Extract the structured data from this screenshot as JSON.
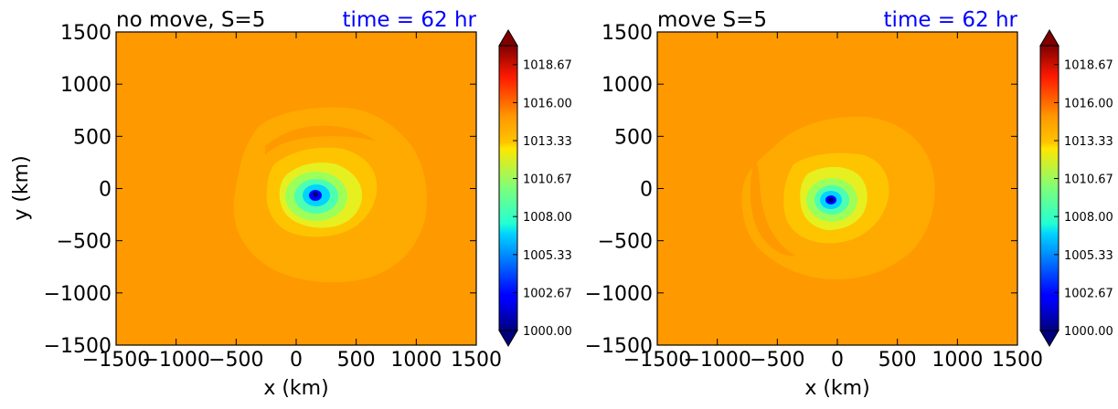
{
  "chart_data": [
    {
      "type": "contourf",
      "title_left": "no move, S=5",
      "title_right": "time = 62 hr",
      "title_right_color": "#0000ff",
      "xlabel": "x (km)",
      "ylabel": "y (km)",
      "xlim": [
        -1500,
        1500
      ],
      "ylim": [
        -1500,
        1500
      ],
      "xticks": [
        "−1500",
        "−1000",
        "−500",
        "0",
        "500",
        "1000",
        "1500"
      ],
      "yticks": [
        "−1500",
        "−1000",
        "−500",
        "0",
        "500",
        "1000",
        "1500"
      ],
      "storm_center_km": [
        160,
        -70
      ],
      "background_color": "#ff9900",
      "colorbar": {
        "min": 1000.0,
        "max": 1020.0,
        "extend": "both",
        "labels": [
          "1000.00",
          "1002.67",
          "1005.33",
          "1008.00",
          "1010.67",
          "1013.33",
          "1016.00",
          "1018.67"
        ]
      }
    },
    {
      "type": "contourf",
      "title_left": "move S=5",
      "title_right": "time = 62 hr",
      "title_right_color": "#0000ff",
      "xlabel": "x (km)",
      "ylabel": "",
      "xlim": [
        -1500,
        1500
      ],
      "ylim": [
        -1500,
        1500
      ],
      "xticks": [
        "−1500",
        "−1000",
        "−500",
        "0",
        "500",
        "1000",
        "1500"
      ],
      "yticks": [
        "−1500",
        "−1000",
        "−500",
        "0",
        "500",
        "1000",
        "1500"
      ],
      "storm_center_km": [
        -50,
        -110
      ],
      "background_color": "#ff9900",
      "colorbar": {
        "min": 1000.0,
        "max": 1020.0,
        "extend": "both",
        "labels": [
          "1000.00",
          "1002.67",
          "1005.33",
          "1008.00",
          "1010.67",
          "1013.33",
          "1016.00",
          "1018.67"
        ]
      }
    }
  ]
}
